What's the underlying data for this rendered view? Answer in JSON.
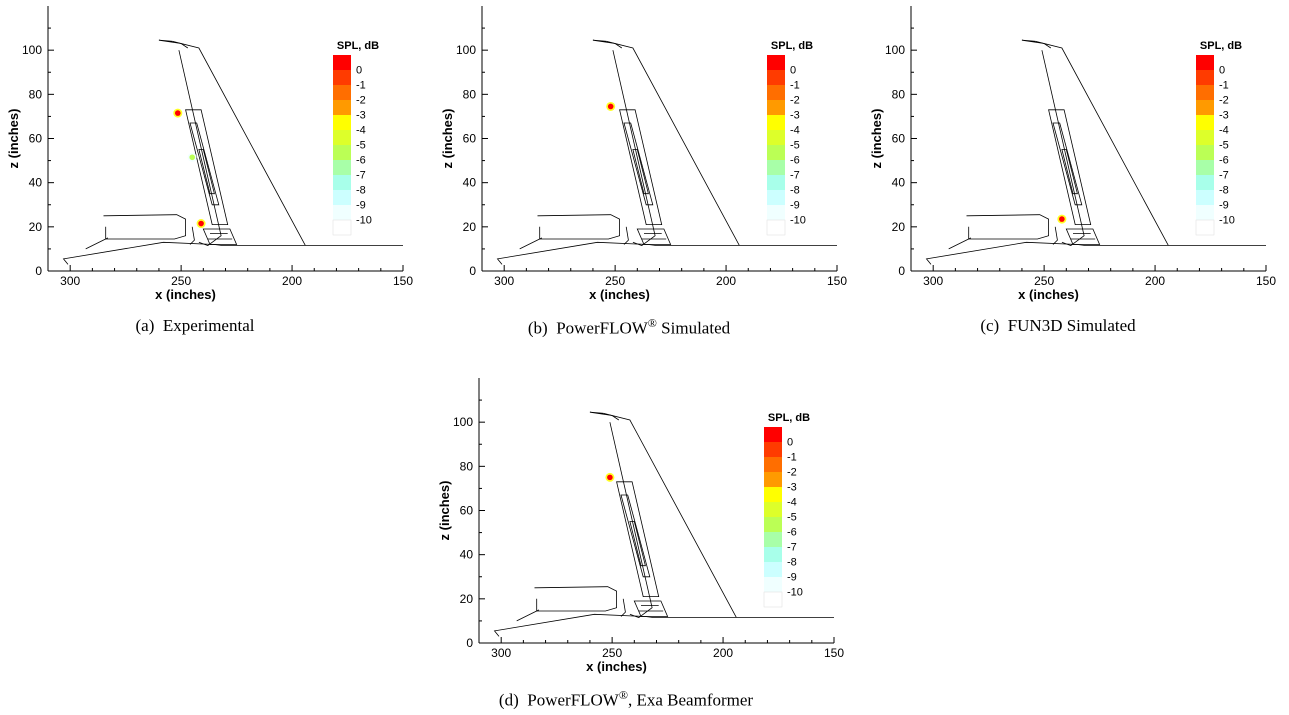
{
  "chart_data": [
    {
      "type": "heatmap",
      "caption": {
        "label": "(a)",
        "text": "Experimental"
      },
      "xlabel": "x (inches)",
      "ylabel": "z (inches)",
      "xlim": [
        310,
        150
      ],
      "ylim": [
        0,
        120
      ],
      "xticks": [
        300,
        250,
        200,
        150
      ],
      "yticks": [
        0,
        20,
        40,
        60,
        80,
        100
      ],
      "legend": {
        "title": "SPL, dB",
        "levels": [
          "0",
          "-1",
          "-2",
          "-3",
          "-4",
          "-5",
          "-6",
          "-7",
          "-8",
          "-9",
          "-10"
        ]
      },
      "sources": [
        {
          "x": 251.5,
          "z": 71.5,
          "level": 0
        },
        {
          "x": 241.0,
          "z": 21.5,
          "level": 0
        },
        {
          "x": 245.0,
          "z": 51.5,
          "level": -6
        }
      ]
    },
    {
      "type": "heatmap",
      "caption": {
        "label": "(b)",
        "text": "PowerFLOW",
        "sup": "®",
        "after": "Simulated"
      },
      "xlabel": "x (inches)",
      "ylabel": "z (inches)",
      "xlim": [
        310,
        150
      ],
      "ylim": [
        0,
        120
      ],
      "xticks": [
        300,
        250,
        200,
        150
      ],
      "yticks": [
        0,
        20,
        40,
        60,
        80,
        100
      ],
      "legend": {
        "title": "SPL, dB",
        "levels": [
          "0",
          "-1",
          "-2",
          "-3",
          "-4",
          "-5",
          "-6",
          "-7",
          "-8",
          "-9",
          "-10"
        ]
      },
      "sources": [
        {
          "x": 252.0,
          "z": 74.5,
          "level": 0
        }
      ]
    },
    {
      "type": "heatmap",
      "caption": {
        "label": "(c)",
        "text": "FUN3D Simulated"
      },
      "xlabel": "x (inches)",
      "ylabel": "z (inches)",
      "xlim": [
        310,
        150
      ],
      "ylim": [
        0,
        120
      ],
      "xticks": [
        300,
        250,
        200,
        150
      ],
      "yticks": [
        0,
        20,
        40,
        60,
        80,
        100
      ],
      "legend": {
        "title": "SPL, dB",
        "levels": [
          "0",
          "-1",
          "-2",
          "-3",
          "-4",
          "-5",
          "-6",
          "-7",
          "-8",
          "-9",
          "-10"
        ]
      },
      "sources": [
        {
          "x": 242.0,
          "z": 23.5,
          "level": 0
        }
      ]
    },
    {
      "type": "heatmap",
      "caption": {
        "label": "(d)",
        "text": "PowerFLOW",
        "sup": "®",
        "after": ", Exa Beamformer"
      },
      "xlabel": "x (inches)",
      "ylabel": "z (inches)",
      "xlim": [
        310,
        150
      ],
      "ylim": [
        0,
        120
      ],
      "xticks": [
        300,
        250,
        200,
        150
      ],
      "yticks": [
        0,
        20,
        40,
        60,
        80,
        100
      ],
      "legend": {
        "title": "SPL, dB",
        "levels": [
          "0",
          "-1",
          "-2",
          "-3",
          "-4",
          "-5",
          "-6",
          "-7",
          "-8",
          "-9",
          "-10"
        ]
      },
      "sources": [
        {
          "x": 251.0,
          "z": 75.0,
          "level": 0
        }
      ]
    }
  ],
  "colors": {
    "levels": [
      "#ff0000",
      "#ff3b00",
      "#ff6e00",
      "#ff9a00",
      "#ffff00",
      "#ddff2a",
      "#bbff55",
      "#a8ffa8",
      "#a8ffea",
      "#ccffff",
      "#f0ffff",
      "#ffffff"
    ]
  }
}
